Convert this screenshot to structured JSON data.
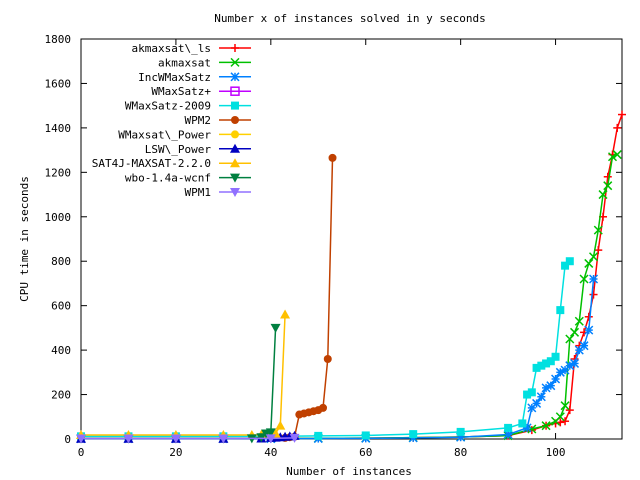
{
  "chart_data": {
    "type": "line",
    "title": "Number x of instances solved in y seconds",
    "xlabel": "Number of instances",
    "ylabel": "CPU time in seconds",
    "xlim": [
      0,
      114
    ],
    "ylim": [
      0,
      1800
    ],
    "xticks": [
      0,
      20,
      40,
      60,
      80,
      100
    ],
    "yticks": [
      0,
      200,
      400,
      600,
      800,
      1000,
      1200,
      1400,
      1600,
      1800
    ],
    "legend_position": "top-left",
    "grid": false,
    "series": [
      {
        "name": "akmaxsat\\_ls",
        "color": "#ff0000",
        "marker": "plus",
        "x": [
          0,
          10,
          20,
          30,
          40,
          50,
          60,
          70,
          80,
          90,
          95,
          98,
          100,
          101,
          102,
          103,
          104,
          105,
          106,
          107,
          108,
          109,
          110,
          111,
          112,
          113,
          114
        ],
        "y": [
          2,
          2,
          2,
          2,
          2,
          3,
          4,
          6,
          9,
          15,
          40,
          60,
          70,
          75,
          80,
          130,
          360,
          420,
          480,
          550,
          650,
          850,
          1000,
          1180,
          1280,
          1400,
          1460
        ]
      },
      {
        "name": "akmaxsat",
        "color": "#00c000",
        "marker": "cross",
        "x": [
          0,
          10,
          20,
          30,
          40,
          50,
          60,
          70,
          80,
          90,
          95,
          98,
          100,
          101,
          102,
          103,
          104,
          105,
          106,
          107,
          108,
          109,
          110,
          111,
          112,
          113
        ],
        "y": [
          2,
          2,
          2,
          2,
          2,
          3,
          4,
          6,
          9,
          15,
          45,
          60,
          80,
          100,
          150,
          450,
          480,
          530,
          720,
          790,
          820,
          940,
          1100,
          1140,
          1270,
          1280
        ]
      },
      {
        "name": "IncWMaxSatz",
        "color": "#0080ff",
        "marker": "star",
        "x": [
          0,
          10,
          20,
          30,
          40,
          50,
          60,
          70,
          80,
          90,
          94,
          95,
          96,
          97,
          98,
          99,
          100,
          101,
          102,
          103,
          104,
          105,
          106,
          107,
          108
        ],
        "y": [
          1,
          1,
          1,
          1,
          1,
          2,
          3,
          5,
          8,
          20,
          50,
          140,
          160,
          190,
          230,
          240,
          270,
          300,
          310,
          330,
          340,
          400,
          420,
          490,
          720
        ]
      },
      {
        "name": "WMaxSatz+",
        "color": "#c000ff",
        "marker": "box",
        "x": [],
        "y": []
      },
      {
        "name": "WMaxSatz-2009",
        "color": "#00e0e0",
        "marker": "filledbox",
        "x": [
          0,
          10,
          20,
          30,
          40,
          50,
          60,
          70,
          80,
          90,
          93,
          94,
          95,
          96,
          97,
          98,
          99,
          100,
          101,
          102,
          103
        ],
        "y": [
          12,
          12,
          12,
          12,
          12,
          14,
          16,
          22,
          32,
          50,
          70,
          200,
          210,
          320,
          330,
          340,
          350,
          370,
          580,
          780,
          800
        ]
      },
      {
        "name": "WPM2",
        "color": "#c04000",
        "marker": "filledcircle",
        "x": [
          43,
          44,
          45,
          46,
          47,
          48,
          49,
          50,
          51,
          52,
          53
        ],
        "y": [
          5,
          8,
          10,
          110,
          115,
          120,
          125,
          130,
          140,
          360,
          1265
        ]
      },
      {
        "name": "WMaxsat\\_Power",
        "color": "#ffd000",
        "marker": "filledcircle",
        "x": [],
        "y": []
      },
      {
        "name": "LSW\\_Power",
        "color": "#0000c0",
        "marker": "filledtriangle",
        "x": [
          0,
          10,
          20,
          30,
          38,
          40,
          41,
          42,
          43,
          44,
          45
        ],
        "y": [
          1,
          1,
          1,
          1,
          2,
          5,
          6,
          8,
          10,
          12,
          14
        ]
      },
      {
        "name": "SAT4J-MAXSAT-2.2.0",
        "color": "#ffc000",
        "marker": "filledtriangle",
        "x": [
          0,
          10,
          20,
          30,
          36,
          38,
          40,
          41,
          42,
          43
        ],
        "y": [
          18,
          18,
          18,
          18,
          18,
          19,
          20,
          25,
          60,
          560
        ]
      },
      {
        "name": "wbo-1.4a-wcnf",
        "color": "#008040",
        "marker": "filledinvtriangle",
        "x": [
          0,
          10,
          20,
          30,
          36,
          38,
          39,
          40,
          41
        ],
        "y": [
          2,
          2,
          2,
          2,
          3,
          8,
          25,
          30,
          500
        ]
      },
      {
        "name": "WPM1",
        "color": "#9070ff",
        "marker": "filledinvtriangle",
        "x": [
          0,
          10,
          20,
          30,
          40,
          45
        ],
        "y": [
          2,
          2,
          2,
          2,
          3,
          5
        ]
      }
    ]
  }
}
